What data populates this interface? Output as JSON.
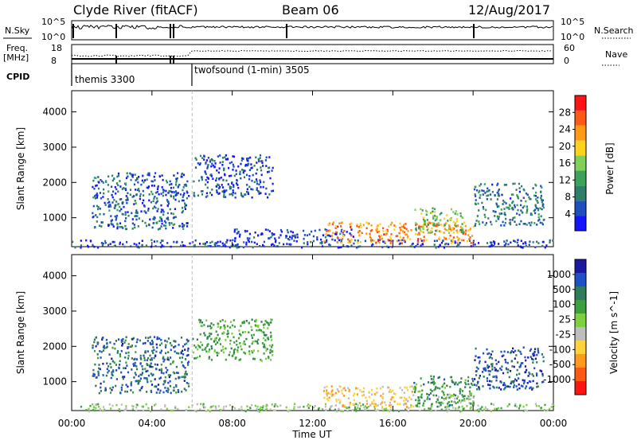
{
  "header": {
    "station": "Clyde River (fitACF)",
    "beam": "Beam 06",
    "date": "12/Aug/2017"
  },
  "top_panels": {
    "nsky_label": "N.Sky",
    "nsky_ticks": [
      "10^5",
      "10^0"
    ],
    "nsearch_label": "N.Search",
    "nsearch_ticks": [
      "10^5",
      "10^0"
    ],
    "freq_label": "Freq.",
    "freq_unit": "[MHz]",
    "freq_ticks": [
      "18",
      "8"
    ],
    "nave_label": "Nave",
    "nave_ticks": [
      "60",
      "0"
    ],
    "cpid_label": "CPID",
    "cpid_segments": [
      {
        "name": "themis 3300",
        "start_hour": 0,
        "end_hour": 6
      },
      {
        "name": "twofsound (1-min) 3505",
        "start_hour": 6,
        "end_hour": 24
      }
    ]
  },
  "chart_data": [
    {
      "type": "heatmap",
      "title": "",
      "xlabel": "Time UT",
      "ylabel": "Slant Range [km]",
      "x_ticks": [
        "00:00",
        "04:00",
        "08:00",
        "12:00",
        "16:00",
        "20:00",
        "00:00"
      ],
      "x_range_hours": [
        0,
        24
      ],
      "y_ticks": [
        1000,
        2000,
        3000,
        4000
      ],
      "y_range_km": [
        180,
        4600
      ],
      "colorbar": {
        "label": "Power [dB]",
        "ticks": [
          "4",
          "8",
          "12",
          "16",
          "20",
          "24",
          "28"
        ],
        "range": [
          0,
          30
        ],
        "colors": [
          "#1414ff",
          "#1e4fbf",
          "#2d7f6a",
          "#3da35a",
          "#7fd15a",
          "#ffd21e",
          "#ff9a14",
          "#ff5a14",
          "#ff1414"
        ]
      },
      "echo_regions": [
        {
          "t0": 1.0,
          "t1": 5.8,
          "r0": 700,
          "r1": 2300,
          "level": 6
        },
        {
          "t0": 0.0,
          "t1": 24.0,
          "r0": 180,
          "r1": 400,
          "level": 4
        },
        {
          "t0": 8.0,
          "t1": 14.0,
          "r0": 400,
          "r1": 700,
          "level": 3
        },
        {
          "t0": 12.5,
          "t1": 20.0,
          "r0": 300,
          "r1": 900,
          "level": 22
        },
        {
          "t0": 17.0,
          "t1": 19.5,
          "r0": 600,
          "r1": 1300,
          "level": 14
        },
        {
          "t0": 20.0,
          "t1": 23.5,
          "r0": 800,
          "r1": 2000,
          "level": 8
        },
        {
          "t0": 6.0,
          "t1": 10.0,
          "r0": 1600,
          "r1": 2800,
          "level": 5
        }
      ]
    },
    {
      "type": "heatmap",
      "title": "",
      "xlabel": "Time UT",
      "ylabel": "Slant Range [km]",
      "x_ticks": [
        "00:00",
        "04:00",
        "08:00",
        "12:00",
        "16:00",
        "20:00",
        "00:00"
      ],
      "x_range_hours": [
        0,
        24
      ],
      "y_ticks": [
        1000,
        2000,
        3000,
        4000
      ],
      "y_range_km": [
        180,
        4600
      ],
      "colorbar": {
        "label": "Velocity [m s^-1]",
        "ticks": [
          "1000",
          "500",
          "100",
          "25",
          "-25",
          "-100",
          "-500",
          "-1000"
        ],
        "range": [
          -1000,
          1000
        ],
        "colors": [
          "#1a1aa0",
          "#1e50c8",
          "#2e7c5a",
          "#3ca03c",
          "#7fd040",
          "#bebebe",
          "#ffd23c",
          "#ff9a1e",
          "#ff5a14",
          "#ff1414"
        ]
      },
      "echo_regions": [
        {
          "t0": 1.0,
          "t1": 5.8,
          "r0": 700,
          "r1": 2300,
          "level": 600
        },
        {
          "t0": 0.0,
          "t1": 24.0,
          "r0": 180,
          "r1": 400,
          "level": 60
        },
        {
          "t0": 12.5,
          "t1": 17.0,
          "r0": 300,
          "r1": 900,
          "level": -300
        },
        {
          "t0": 17.0,
          "t1": 20.0,
          "r0": 300,
          "r1": 1200,
          "level": 400
        },
        {
          "t0": 18.0,
          "t1": 20.0,
          "r0": 400,
          "r1": 700,
          "level": 100
        },
        {
          "t0": 20.0,
          "t1": 23.5,
          "r0": 800,
          "r1": 2000,
          "level": 700
        },
        {
          "t0": 6.0,
          "t1": 10.0,
          "r0": 1600,
          "r1": 2800,
          "level": 300
        }
      ]
    }
  ]
}
